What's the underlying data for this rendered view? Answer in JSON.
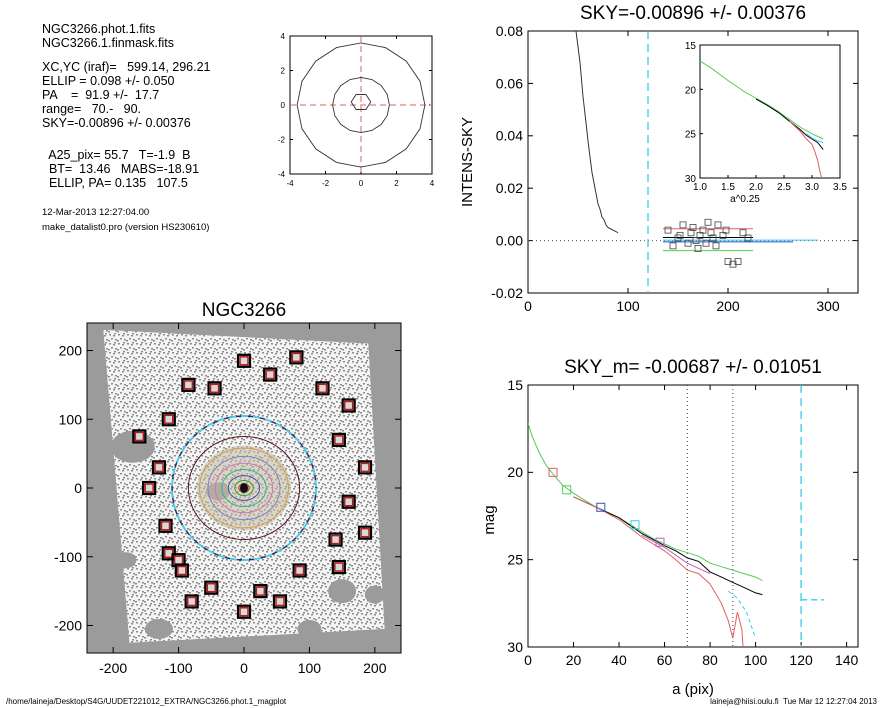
{
  "info": {
    "lines_a": [
      "NGC3266.phot.1.fits",
      "NGC3266.1.finmask.fits"
    ],
    "lines_b": [
      "XC,YC (iraf)=   599.14, 296.21",
      "ELLIP = 0.098 +/- 0.050",
      "PA    =  91.9 +/-  17.7",
      "range=   70.-   90.",
      "SKY=-0.00896 +/- 0.00376"
    ],
    "lines_c": [
      "  A25_pix= 55.7   T=-1.9  B",
      "  BT=  13.46   MABS=-18.91",
      "  ELLIP, PA= 0.135   107.5"
    ],
    "date": "12-Mar-2013 12:27:04.00",
    "program": "make_datalist0.pro (version HS230610)"
  },
  "footer": {
    "path": "/home/laineja/Desktop/S4G/UUDET221012_EXTRA/NGC3266.phot.1_magplot",
    "user": "laineja@hiisi.oulu.fi  Tue Mar 12 12:27:04 2013"
  },
  "chart_data": [
    {
      "type": "line",
      "id": "ellipse-plot",
      "title": "",
      "xlabel": "",
      "ylabel": "",
      "xlim": [
        -4,
        4
      ],
      "ylim": [
        -4,
        4
      ],
      "xticks": [
        -4,
        -2,
        0,
        2,
        4
      ],
      "yticks": [
        -4,
        -2,
        0,
        2,
        4
      ],
      "xticklabels": [
        "-4",
        "-2",
        "0",
        "2",
        "4"
      ],
      "yticklabels": [
        "-4",
        "-2",
        "0",
        "2",
        "4"
      ],
      "ellipses": [
        {
          "a": 3.6,
          "b": 3.6
        },
        {
          "a": 1.6,
          "b": 1.6
        },
        {
          "a": 0.55,
          "b": 0.5
        }
      ],
      "crosshair": {
        "x": 0,
        "y": 0,
        "color": "#e06060"
      }
    },
    {
      "type": "line",
      "id": "sky-plot",
      "title": "SKY=-0.00896 +/- 0.00376",
      "xlabel": "",
      "ylabel": "INTENS-SKY",
      "xlim": [
        0,
        330
      ],
      "ylim": [
        -0.02,
        0.08
      ],
      "xticks": [
        0,
        100,
        200,
        300
      ],
      "yticks": [
        -0.02,
        0.0,
        0.02,
        0.04,
        0.06,
        0.08
      ],
      "xticklabels": [
        "0",
        "100",
        "200",
        "300"
      ],
      "yticklabels": [
        "-0.02",
        "0.00",
        "0.02",
        "0.04",
        "0.06",
        "0.08"
      ],
      "zero_line": 0,
      "vline": {
        "x": 120,
        "color": "#33ccee"
      },
      "series": [
        {
          "color": "#333333",
          "x": [
            48,
            52,
            55,
            58,
            60,
            62,
            64,
            66,
            68,
            70,
            72,
            74,
            76,
            78,
            80,
            85,
            90
          ],
          "y": [
            0.08,
            0.068,
            0.055,
            0.045,
            0.038,
            0.032,
            0.026,
            0.022,
            0.018,
            0.014,
            0.012,
            0.009,
            0.008,
            0.006,
            0.005,
            0.004,
            0.003
          ]
        },
        {
          "color": "#000000",
          "x": [
            135,
            225
          ],
          "y": [
            0.0012,
            0.0012
          ]
        },
        {
          "color": "#e06060",
          "x": [
            135,
            225
          ],
          "y": [
            0.0045,
            0.0045
          ]
        },
        {
          "color": "#2255cc",
          "x": [
            135,
            265
          ],
          "y": [
            -0.0005,
            -0.0005
          ]
        },
        {
          "color": "#33ccee",
          "x": [
            135,
            290
          ],
          "y": [
            0.0002,
            0.0002
          ]
        },
        {
          "color": "#55cc55",
          "x": [
            135,
            225
          ],
          "y": [
            -0.0038,
            -0.0038
          ]
        }
      ],
      "points": {
        "x": [
          140,
          145,
          150,
          152,
          155,
          160,
          163,
          165,
          168,
          170,
          172,
          175,
          178,
          180,
          183,
          185,
          188,
          190,
          195,
          198,
          200,
          205,
          210,
          215,
          220
        ],
        "y": [
          0.004,
          -0.002,
          0.001,
          0.002,
          0.006,
          -0.001,
          0.003,
          0.005,
          0.0,
          -0.003,
          0.002,
          0.004,
          -0.001,
          0.007,
          0.003,
          0.001,
          -0.002,
          0.006,
          0.002,
          0.004,
          -0.008,
          -0.009,
          -0.008,
          0.003,
          0.001
        ]
      },
      "inset": {
        "xlabel": "a^0.25",
        "xlim": [
          1.0,
          3.5
        ],
        "ylim": [
          15,
          30
        ],
        "xticks": [
          1.0,
          1.5,
          2.0,
          2.5,
          3.0,
          3.5
        ],
        "yticks": [
          15,
          20,
          25,
          30
        ],
        "xticklabels": [
          "1.0",
          "1.5",
          "2.0",
          "2.5",
          "3.0",
          "3.5"
        ],
        "yticklabels": [
          "15",
          "20",
          "25",
          "30"
        ],
        "series": [
          {
            "color": "#55cc55",
            "x": [
              1.0,
              1.2,
              1.5,
              1.8,
              2.0,
              2.2,
              2.4,
              2.6,
              2.8,
              3.0,
              3.2
            ],
            "y": [
              16.8,
              17.6,
              19.0,
              20.3,
              21.0,
              21.7,
              22.5,
              23.4,
              24.3,
              25.0,
              25.6
            ]
          },
          {
            "color": "#000000",
            "x": [
              2.0,
              2.2,
              2.4,
              2.6,
              2.8,
              2.9,
              3.0,
              3.1,
              3.2
            ],
            "y": [
              21.1,
              21.8,
              22.6,
              23.6,
              24.6,
              25.2,
              25.6,
              26.0,
              26.8
            ]
          },
          {
            "color": "#e06060",
            "x": [
              2.6,
              2.8,
              2.9,
              3.0,
              3.05,
              3.1,
              3.15,
              3.2
            ],
            "y": [
              23.6,
              24.8,
              25.6,
              26.2,
              27.0,
              28.0,
              29.5,
              30.5
            ]
          },
          {
            "color": "#33ccee",
            "x": [
              2.9,
              3.0,
              3.1,
              3.2
            ],
            "y": [
              25.0,
              25.5,
              25.8,
              26.0
            ]
          }
        ]
      }
    },
    {
      "type": "scatter",
      "id": "image-plot",
      "title": "NGC3266",
      "xlabel": "",
      "ylabel": "",
      "xlim": [
        -240,
        240
      ],
      "ylim": [
        -240,
        240
      ],
      "xticks": [
        -200,
        -100,
        0,
        100,
        200
      ],
      "yticks": [
        -200,
        -100,
        0,
        100,
        200
      ],
      "xticklabels": [
        "-200",
        "-100",
        "0",
        "100",
        "200"
      ],
      "yticklabels": [
        "-200",
        "-100",
        "0",
        "100",
        "200"
      ],
      "center": [
        0,
        0
      ],
      "dashed_circle_radius": 110,
      "ellipses": [
        {
          "a": 85,
          "b": 75,
          "color": "#5a1020"
        },
        {
          "a": 68,
          "b": 58,
          "color": "#c9a060"
        },
        {
          "a": 55,
          "b": 46,
          "color": "#8080d0"
        },
        {
          "a": 44,
          "b": 36,
          "color": "#d070d0"
        },
        {
          "a": 34,
          "b": 27,
          "color": "#30b0a0"
        },
        {
          "a": 24,
          "b": 18,
          "color": "#4050c0"
        },
        {
          "a": 14,
          "b": 11,
          "color": "#30a030"
        },
        {
          "a": 8,
          "b": 6,
          "color": "#c03030"
        }
      ],
      "sky_boxes": {
        "x": [
          0,
          40,
          80,
          -45,
          -85,
          120,
          160,
          -115,
          145,
          -160,
          -130,
          -145,
          185,
          160,
          -120,
          185,
          140,
          -115,
          -100,
          145,
          -95,
          85,
          -50,
          -80,
          25,
          55,
          0
        ],
        "y": [
          185,
          165,
          190,
          145,
          150,
          145,
          120,
          100,
          70,
          75,
          30,
          0,
          30,
          -20,
          -55,
          -65,
          -75,
          -95,
          -105,
          -115,
          -120,
          -120,
          -145,
          -165,
          -150,
          -165,
          -180
        ]
      }
    },
    {
      "type": "line",
      "id": "mag-plot",
      "title": "SKY_m= -0.00687 +/- 0.01051",
      "xlabel": "a (pix)",
      "ylabel": "mag",
      "xlim": [
        0,
        145
      ],
      "ylim": [
        15,
        30
      ],
      "xticks": [
        0,
        20,
        40,
        60,
        80,
        100,
        120,
        140
      ],
      "yticks": [
        15,
        20,
        25,
        30
      ],
      "xticklabels": [
        "0",
        "20",
        "40",
        "60",
        "80",
        "100",
        "120",
        "140"
      ],
      "yticklabels": [
        "15",
        "20",
        "25",
        "30"
      ],
      "vlines": [
        {
          "x": 70,
          "color": "#444444"
        },
        {
          "x": 90,
          "color": "#444444"
        },
        {
          "x": 120,
          "color": "#33ccee"
        }
      ],
      "series": [
        {
          "color": "#55cc55",
          "x": [
            0,
            2,
            5,
            8,
            11,
            15,
            20,
            25,
            30,
            35,
            40,
            45,
            50,
            55,
            60,
            65,
            70,
            75,
            80,
            85,
            90,
            95,
            100,
            103
          ],
          "y": [
            17.2,
            18.0,
            18.9,
            19.6,
            20.1,
            20.7,
            21.2,
            21.6,
            22.0,
            22.3,
            22.6,
            23.0,
            23.4,
            23.8,
            24.1,
            24.4,
            24.6,
            24.8,
            25.2,
            25.4,
            25.6,
            25.8,
            26.0,
            26.2
          ]
        },
        {
          "color": "#000000",
          "x": [
            20,
            30,
            40,
            50,
            60,
            65,
            70,
            75,
            80,
            85,
            90,
            95,
            100,
            103
          ],
          "y": [
            21.4,
            22.0,
            22.6,
            23.5,
            24.2,
            24.5,
            24.9,
            25.1,
            25.7,
            26.0,
            26.3,
            26.6,
            26.9,
            27.0
          ]
        },
        {
          "color": "#e06060",
          "x": [
            20,
            30,
            40,
            50,
            60,
            65,
            70,
            75,
            80,
            85,
            88,
            90,
            92,
            94,
            95
          ],
          "y": [
            21.4,
            22.0,
            22.7,
            23.7,
            24.5,
            25.0,
            25.6,
            25.8,
            26.4,
            27.5,
            28.5,
            29.5,
            28.0,
            29.0,
            31.0
          ]
        },
        {
          "color": "#c060c0",
          "x": [
            50,
            60,
            70,
            80
          ],
          "y": [
            23.6,
            24.3,
            25.2,
            25.8
          ]
        },
        {
          "color": "#33ccee",
          "x": [
            88,
            92,
            96,
            100
          ],
          "y": [
            26.8,
            27.2,
            28.0,
            29.5
          ]
        }
      ],
      "dashed_segments": [
        {
          "x": [
            120,
            130
          ],
          "y": [
            27.3,
            27.3
          ],
          "color": "#33ccee"
        }
      ],
      "markers": [
        {
          "x": 11,
          "y": 20.0,
          "color": "#e06060"
        },
        {
          "x": 17,
          "y": 21.0,
          "color": "#55cc55"
        },
        {
          "x": 32,
          "y": 22.0,
          "color": "#2255cc"
        },
        {
          "x": 47,
          "y": 23.0,
          "color": "#33ccee"
        },
        {
          "x": 58,
          "y": 24.0,
          "color": "#c060c0"
        }
      ]
    }
  ]
}
